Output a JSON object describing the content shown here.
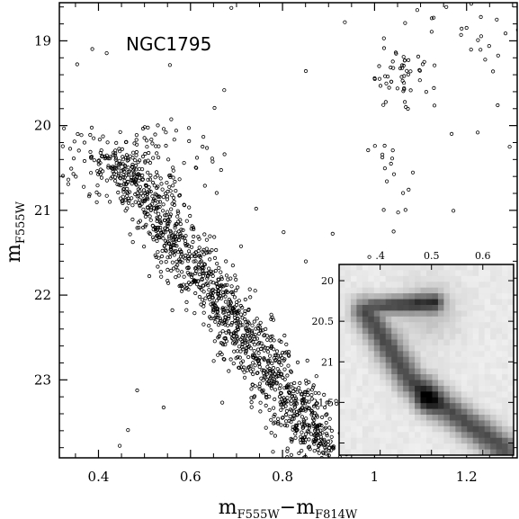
{
  "chart_data": [
    {
      "type": "scatter",
      "title": "",
      "annotation": "NGC1795",
      "xlabel": {
        "main": "m",
        "sub1": "F555W",
        "minus": "−",
        "main2": "m",
        "sub2": "F814W"
      },
      "ylabel": {
        "main": "m",
        "sub": "F555W"
      },
      "xlim": [
        0.315,
        1.31
      ],
      "ylim": [
        23.92,
        18.55
      ],
      "y_inverted": true,
      "xticks": [
        0.4,
        0.6,
        0.8,
        1.0,
        1.2
      ],
      "xtick_labels": [
        "0.4",
        "0.6",
        "0.8",
        "1",
        "1.2"
      ],
      "yticks": [
        19,
        20,
        21,
        22,
        23
      ],
      "ytick_labels": [
        "19",
        "20",
        "21",
        "22",
        "23"
      ],
      "grid": false,
      "marker": "open-circle",
      "series": [
        {
          "components": [
            {
              "label": "",
              "x_start": 0.44,
              "y_start": 20.35,
              "x_end": 0.9,
              "y_end": 23.92,
              "count": 1300,
              "spread": 0.035
            },
            {
              "label": "",
              "x_start": 0.38,
              "y_start": 20.3,
              "x_end": 0.56,
              "y_end": 20.5,
              "count": 120,
              "spread": 0.08
            },
            {
              "label": "",
              "x_center": 1.06,
              "y_center": 19.4,
              "count": 50,
              "spread_x": 0.03,
              "spread_y": 0.15
            },
            {
              "label": "",
              "x_start": 1.02,
              "y_start": 20.2,
              "x_end": 1.06,
              "y_end": 21.0,
              "count": 15,
              "spread": 0.02
            },
            {
              "label": "",
              "x_start": 1.15,
              "y_start": 18.6,
              "x_end": 1.3,
              "y_end": 19.3,
              "count": 25,
              "spread": 0.05
            },
            {
              "label": "",
              "x_range": [
                0.32,
                1.3
              ],
              "y_range": [
                18.6,
                23.9
              ],
              "count": 45
            }
          ]
        }
      ]
    },
    {
      "type": "heatmap",
      "title": "",
      "xlim": [
        0.32,
        0.66
      ],
      "ylim": [
        22.15,
        19.8
      ],
      "xticks": [
        0.4,
        0.5,
        0.6
      ],
      "xtick_labels": [
        ".4",
        "0.5",
        "0.6"
      ],
      "yticks": [
        20,
        20.5,
        21,
        21.5,
        22
      ],
      "ytick_labels": [
        "20",
        "20.5",
        "21",
        "21.5",
        "22"
      ],
      "colormap": "grayscale",
      "peak": {
        "x": 0.49,
        "y": 21.48
      },
      "colors": {
        "background": "#ffffff",
        "peak": "#000000"
      }
    }
  ]
}
